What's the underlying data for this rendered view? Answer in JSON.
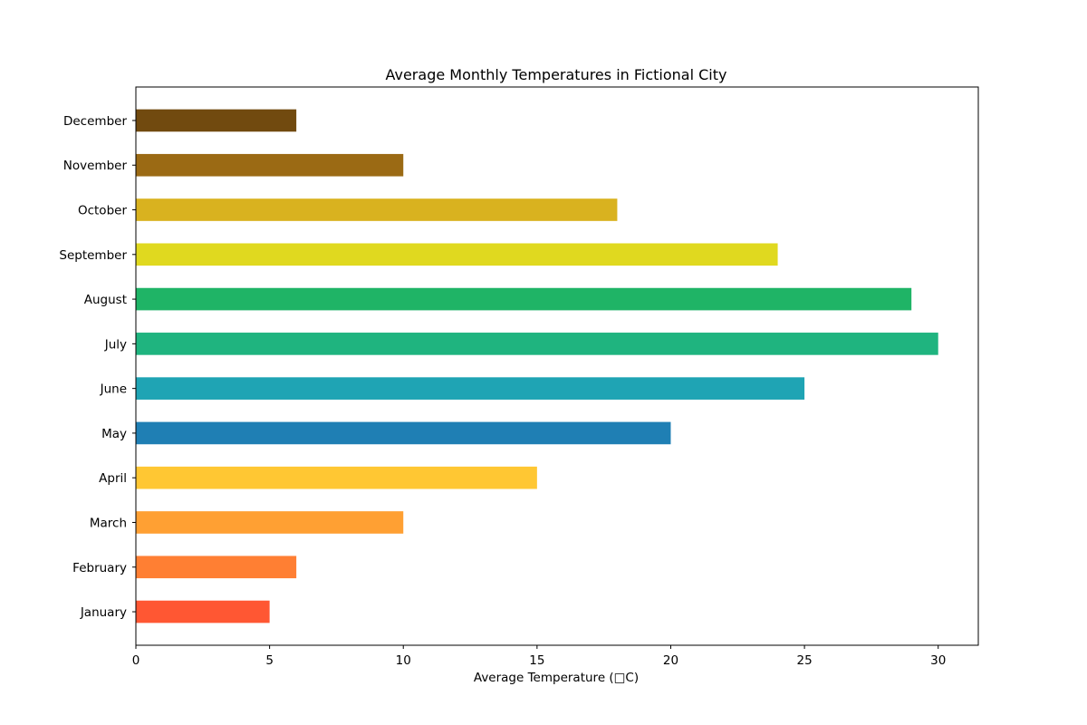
{
  "chart_data": {
    "type": "bar",
    "orientation": "horizontal",
    "title": "Average Monthly Temperatures in Fictional City",
    "xlabel": "Average Temperature (□C)",
    "ylabel": "",
    "xlim": [
      0,
      31.5
    ],
    "x_ticks": [
      0,
      5,
      10,
      15,
      20,
      25,
      30
    ],
    "x_tick_labels": [
      "0",
      "5",
      "10",
      "15",
      "20",
      "25",
      "30"
    ],
    "grid": false,
    "legend": "none",
    "categories": [
      "January",
      "February",
      "March",
      "April",
      "May",
      "June",
      "July",
      "August",
      "September",
      "October",
      "November",
      "December"
    ],
    "values": [
      5,
      6,
      10,
      15,
      20,
      25,
      30,
      29,
      24,
      18,
      10,
      6
    ],
    "colors": [
      "#ff5733",
      "#ff7f33",
      "#ffa033",
      "#ffc733",
      "#1f7fb4",
      "#1fa4b4",
      "#1fb47f",
      "#1fb466",
      "#e0d91f",
      "#d9b21f",
      "#9b6a14",
      "#714a0f"
    ]
  }
}
